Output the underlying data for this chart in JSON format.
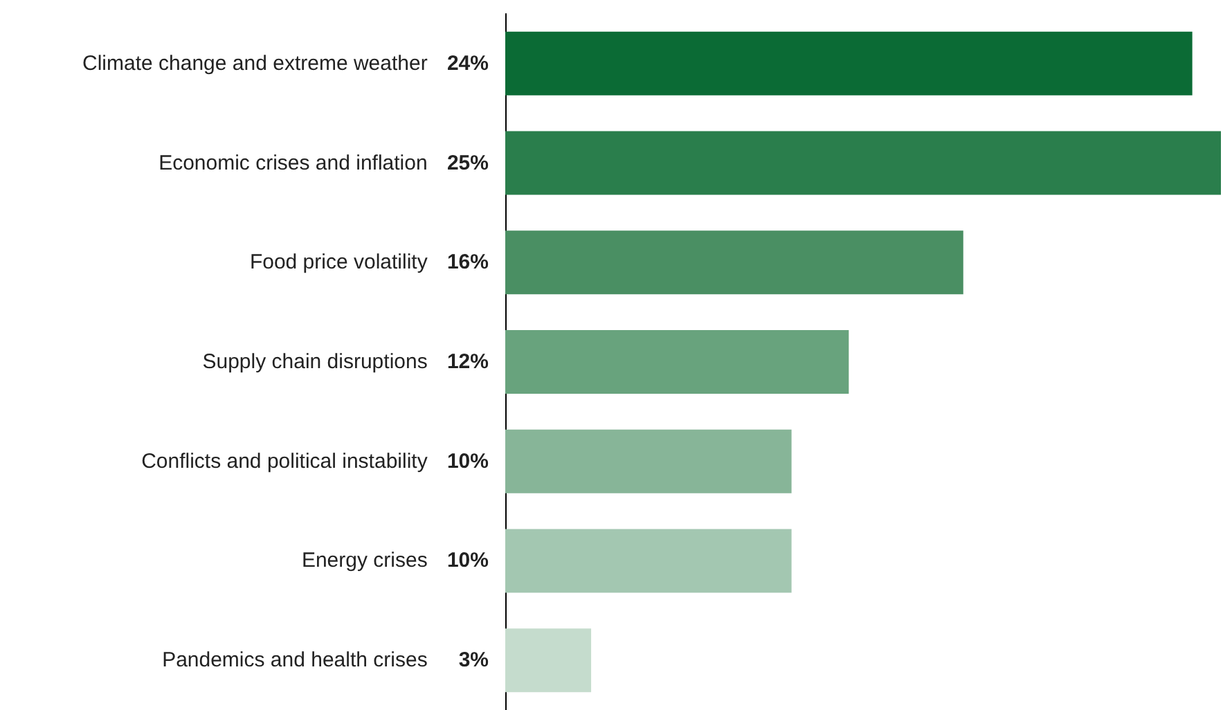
{
  "chart_data": {
    "type": "bar",
    "orientation": "horizontal",
    "categories": [
      "Climate change and extreme weather",
      "Economic crises and inflation",
      "Food price volatility",
      "Supply chain disruptions",
      "Conflicts and political instability",
      "Energy crises",
      "Pandemics and health crises"
    ],
    "values": [
      24,
      25,
      16,
      12,
      10,
      10,
      3
    ],
    "value_labels": [
      "24%",
      "25%",
      "16%",
      "12%",
      "10%",
      "10%",
      "3%"
    ],
    "colors": [
      "#0b6b35",
      "#2a7e4c",
      "#4a8f63",
      "#68a37d",
      "#87b598",
      "#a3c7b1",
      "#c5dccd"
    ]
  }
}
